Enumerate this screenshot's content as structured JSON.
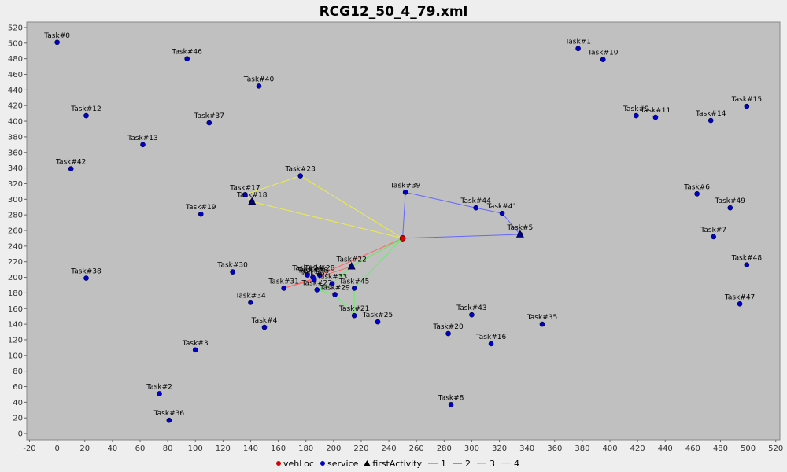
{
  "chart_data": {
    "type": "scatter",
    "title": "RCG12_50_4_79.xml",
    "xlabel": "",
    "ylabel": "",
    "xlim": [
      -22,
      523
    ],
    "ylim": [
      -8,
      527
    ],
    "x_ticks": [
      -20,
      0,
      20,
      40,
      60,
      80,
      100,
      120,
      140,
      160,
      180,
      200,
      220,
      240,
      260,
      280,
      300,
      320,
      340,
      360,
      380,
      400,
      420,
      440,
      460,
      480,
      500,
      520
    ],
    "y_ticks": [
      0,
      20,
      40,
      60,
      80,
      100,
      120,
      140,
      160,
      180,
      200,
      220,
      240,
      260,
      280,
      300,
      320,
      340,
      360,
      380,
      400,
      420,
      440,
      460,
      480,
      500,
      520
    ],
    "grid": false,
    "legend_position": "bottom",
    "colors": {
      "plot_bg": "#c0c0c0",
      "page_bg": "#eeeeee",
      "service": "#0000cc",
      "vehLoc": "#dd0000",
      "route_1": "#ff6666",
      "route_2": "#6666ff",
      "route_3": "#66ee66",
      "route_4": "#eeee44"
    },
    "legend": [
      {
        "label": "vehLoc",
        "marker": "circle",
        "color": "#dd0000"
      },
      {
        "label": "service",
        "marker": "circle",
        "color": "#0000cc"
      },
      {
        "label": "firstActivity",
        "marker": "triangle",
        "color": "#000000"
      },
      {
        "label": "1",
        "marker": "line",
        "color": "#ff6666"
      },
      {
        "label": "2",
        "marker": "line",
        "color": "#6666ff"
      },
      {
        "label": "3",
        "marker": "line",
        "color": "#66ee66"
      },
      {
        "label": "4",
        "marker": "line",
        "color": "#eeee44"
      }
    ],
    "vehLoc": {
      "x": 250,
      "y": 250
    },
    "tasks": [
      {
        "label": "Task#0",
        "x": 0,
        "y": 501
      },
      {
        "label": "Task#1",
        "x": 377,
        "y": 493
      },
      {
        "label": "Task#2",
        "x": 74,
        "y": 51
      },
      {
        "label": "Task#3",
        "x": 100,
        "y": 107
      },
      {
        "label": "Task#4",
        "x": 150,
        "y": 136
      },
      {
        "label": "Task#5",
        "x": 335,
        "y": 255
      },
      {
        "label": "Task#6",
        "x": 463,
        "y": 307
      },
      {
        "label": "Task#7",
        "x": 475,
        "y": 252
      },
      {
        "label": "Task#8",
        "x": 285,
        "y": 37
      },
      {
        "label": "Task#9",
        "x": 419,
        "y": 407
      },
      {
        "label": "Task#10",
        "x": 395,
        "y": 479
      },
      {
        "label": "Task#11",
        "x": 433,
        "y": 405
      },
      {
        "label": "Task#12",
        "x": 21,
        "y": 407
      },
      {
        "label": "Task#13",
        "x": 62,
        "y": 370
      },
      {
        "label": "Task#14",
        "x": 473,
        "y": 401
      },
      {
        "label": "Task#15",
        "x": 499,
        "y": 419
      },
      {
        "label": "Task#16",
        "x": 314,
        "y": 115
      },
      {
        "label": "Task#17",
        "x": 136,
        "y": 306
      },
      {
        "label": "Task#18",
        "x": 141,
        "y": 297
      },
      {
        "label": "Task#19",
        "x": 104,
        "y": 281
      },
      {
        "label": "Task#20",
        "x": 283,
        "y": 128
      },
      {
        "label": "Task#21",
        "x": 215,
        "y": 151
      },
      {
        "label": "Task#22",
        "x": 213,
        "y": 214
      },
      {
        "label": "Task#23",
        "x": 176,
        "y": 330
      },
      {
        "label": "Task#24",
        "x": 181,
        "y": 203
      },
      {
        "label": "Task#25",
        "x": 232,
        "y": 143
      },
      {
        "label": "Task#26",
        "x": 185,
        "y": 200
      },
      {
        "label": "Task#27",
        "x": 188,
        "y": 184
      },
      {
        "label": "Task#28",
        "x": 190,
        "y": 203
      },
      {
        "label": "Task#29",
        "x": 201,
        "y": 178
      },
      {
        "label": "Task#30",
        "x": 127,
        "y": 207
      },
      {
        "label": "Task#31",
        "x": 164,
        "y": 186
      },
      {
        "label": "Task#32",
        "x": 186,
        "y": 197
      },
      {
        "label": "Task#33",
        "x": 199,
        "y": 192
      },
      {
        "label": "Task#34",
        "x": 140,
        "y": 168
      },
      {
        "label": "Task#35",
        "x": 351,
        "y": 140
      },
      {
        "label": "Task#36",
        "x": 81,
        "y": 17
      },
      {
        "label": "Task#37",
        "x": 110,
        "y": 398
      },
      {
        "label": "Task#38",
        "x": 21,
        "y": 199
      },
      {
        "label": "Task#39",
        "x": 252,
        "y": 309
      },
      {
        "label": "Task#40",
        "x": 146,
        "y": 445
      },
      {
        "label": "Task#41",
        "x": 322,
        "y": 282
      },
      {
        "label": "Task#42",
        "x": 10,
        "y": 339
      },
      {
        "label": "Task#43",
        "x": 300,
        "y": 152
      },
      {
        "label": "Task#44",
        "x": 303,
        "y": 289
      },
      {
        "label": "Task#45",
        "x": 215,
        "y": 186
      },
      {
        "label": "Task#46",
        "x": 94,
        "y": 480
      },
      {
        "label": "Task#47",
        "x": 494,
        "y": 166
      },
      {
        "label": "Task#48",
        "x": 499,
        "y": 216
      },
      {
        "label": "Task#49",
        "x": 487,
        "y": 289
      }
    ],
    "first_activities": [
      {
        "x": 141,
        "y": 297
      },
      {
        "x": 335,
        "y": 255
      },
      {
        "x": 213,
        "y": 214
      }
    ],
    "routes": [
      {
        "name": "1",
        "color": "#ff6666",
        "points": [
          [
            250,
            250
          ],
          [
            213,
            214
          ],
          [
            164,
            186
          ],
          [
            186,
            197
          ],
          [
            181,
            203
          ],
          [
            190,
            203
          ],
          [
            250,
            250
          ]
        ]
      },
      {
        "name": "2",
        "color": "#6666ff",
        "points": [
          [
            250,
            250
          ],
          [
            335,
            255
          ],
          [
            322,
            282
          ],
          [
            303,
            289
          ],
          [
            252,
            309
          ],
          [
            250,
            250
          ]
        ]
      },
      {
        "name": "3",
        "color": "#66ee66",
        "points": [
          [
            250,
            250
          ],
          [
            213,
            214
          ],
          [
            199,
            192
          ],
          [
            188,
            184
          ],
          [
            201,
            178
          ],
          [
            215,
            151
          ],
          [
            215,
            186
          ],
          [
            250,
            250
          ]
        ]
      },
      {
        "name": "4",
        "color": "#eeee44",
        "points": [
          [
            250,
            250
          ],
          [
            141,
            297
          ],
          [
            136,
            306
          ],
          [
            176,
            330
          ],
          [
            250,
            250
          ]
        ]
      }
    ]
  }
}
